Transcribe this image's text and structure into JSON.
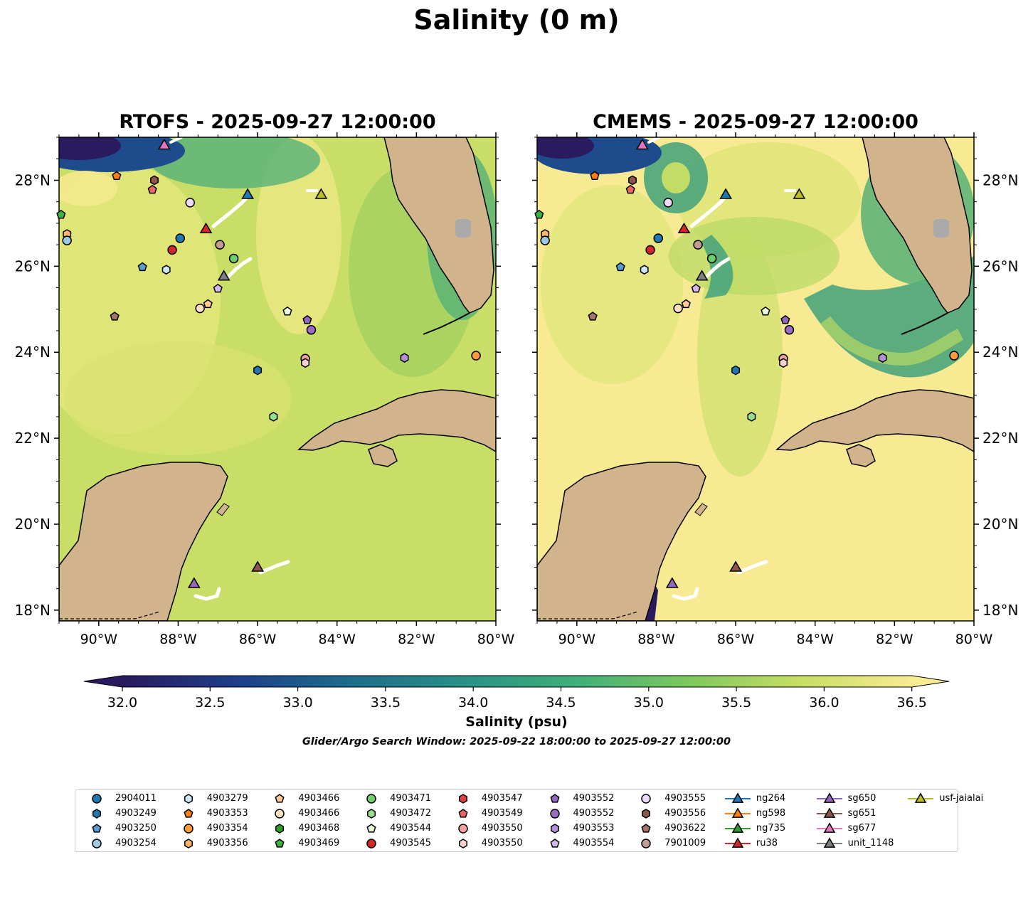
{
  "title": "Salinity (0 m)",
  "panels": [
    {
      "title": "RTOFS - 2025-09-27 12:00:00"
    },
    {
      "title": "CMEMS - 2025-09-27 12:00:00"
    }
  ],
  "axes": {
    "x_ticks": [
      "90°W",
      "88°W",
      "86°W",
      "84°W",
      "82°W",
      "80°W"
    ],
    "y_ticks": [
      "18°N",
      "20°N",
      "22°N",
      "24°N",
      "26°N",
      "28°N"
    ]
  },
  "colorbar": {
    "label": "Salinity (psu)",
    "ticks": [
      "32.0",
      "32.5",
      "33.0",
      "33.5",
      "34.0",
      "34.5",
      "35.0",
      "35.5",
      "36.0",
      "36.5"
    ],
    "colors": [
      "#2a1a5e",
      "#1d3f8a",
      "#1d6b8c",
      "#2a8f86",
      "#3fae7a",
      "#7cc85e",
      "#c6de62",
      "#f9eb92"
    ]
  },
  "search_window": "Glider/Argo Search Window: 2025-09-22 18:00:00 to 2025-09-27 12:00:00",
  "legend": [
    {
      "label": "2904011",
      "marker": "circle",
      "color": "#1f77b4",
      "line": false
    },
    {
      "label": "4903249",
      "marker": "hexagon",
      "color": "#1f77b4",
      "line": false
    },
    {
      "label": "4903250",
      "marker": "pentagon",
      "color": "#5b9bd5",
      "line": false
    },
    {
      "label": "4903254",
      "marker": "circle",
      "color": "#9ecae1",
      "line": false
    },
    {
      "label": "4903279",
      "marker": "hexagon",
      "color": "#cfe8fb",
      "line": false
    },
    {
      "label": "4903353",
      "marker": "pentagon",
      "color": "#ff7f0e",
      "line": false
    },
    {
      "label": "4903354",
      "marker": "circle",
      "color": "#ff9a3c",
      "line": false
    },
    {
      "label": "4903356",
      "marker": "hexagon",
      "color": "#ffb570",
      "line": false
    },
    {
      "label": "4903466",
      "marker": "pentagon",
      "color": "#ffc999",
      "line": false
    },
    {
      "label": "4903466",
      "marker": "circle",
      "color": "#ffe0c2",
      "line": false
    },
    {
      "label": "4903468",
      "marker": "hexagon",
      "color": "#2ca02c",
      "line": false
    },
    {
      "label": "4903469",
      "marker": "pentagon",
      "color": "#3cb43c",
      "line": false
    },
    {
      "label": "4903471",
      "marker": "circle",
      "color": "#6fcf6f",
      "line": false
    },
    {
      "label": "4903472",
      "marker": "hexagon",
      "color": "#98df8a",
      "line": false
    },
    {
      "label": "4903544",
      "marker": "pentagon",
      "color": "#e8fbd6",
      "line": false
    },
    {
      "label": "4903545",
      "marker": "circle",
      "color": "#d62728",
      "line": false
    },
    {
      "label": "4903547",
      "marker": "hexagon",
      "color": "#e04040",
      "line": false
    },
    {
      "label": "4903549",
      "marker": "pentagon",
      "color": "#ee6666",
      "line": false
    },
    {
      "label": "4903550",
      "marker": "circle",
      "color": "#f4a0a0",
      "line": false
    },
    {
      "label": "4903550",
      "marker": "hexagon",
      "color": "#fbd2d2",
      "line": false
    },
    {
      "label": "4903552",
      "marker": "pentagon",
      "color": "#9467bd",
      "line": false
    },
    {
      "label": "4903552",
      "marker": "circle",
      "color": "#9a6cc6",
      "line": false
    },
    {
      "label": "4903553",
      "marker": "hexagon",
      "color": "#b48fdc",
      "line": false
    },
    {
      "label": "4903554",
      "marker": "pentagon",
      "color": "#d4b8f0",
      "line": false
    },
    {
      "label": "4903555",
      "marker": "circle",
      "color": "#eedbff",
      "line": false
    },
    {
      "label": "4903556",
      "marker": "hexagon",
      "color": "#8c564b",
      "line": false
    },
    {
      "label": "4903622",
      "marker": "pentagon",
      "color": "#a77466",
      "line": false
    },
    {
      "label": "7901009",
      "marker": "circle",
      "color": "#c49c94",
      "line": false
    },
    {
      "label": "ng264",
      "marker": "triangle",
      "color": "#1f77b4",
      "line": true
    },
    {
      "label": "ng598",
      "marker": "triangle",
      "color": "#ff7f0e",
      "line": true
    },
    {
      "label": "ng735",
      "marker": "triangle",
      "color": "#2ca02c",
      "line": true
    },
    {
      "label": "ru38",
      "marker": "triangle",
      "color": "#d62728",
      "line": true
    },
    {
      "label": "sg650",
      "marker": "triangle",
      "color": "#9467bd",
      "line": true
    },
    {
      "label": "sg651",
      "marker": "triangle",
      "color": "#8c564b",
      "line": true
    },
    {
      "label": "sg677",
      "marker": "triangle",
      "color": "#e377c2",
      "line": true
    },
    {
      "label": "unit_1148",
      "marker": "triangle",
      "color": "#7f7f7f",
      "line": true
    },
    {
      "label": "usf-jaialai",
      "marker": "triangle",
      "color": "#bcbd22",
      "line": true
    }
  ],
  "observations": [
    {
      "id": "4903469",
      "marker": "pentagon",
      "color": "#3cb43c",
      "lon": -90.95,
      "lat": 27.2
    },
    {
      "id": "4903356",
      "marker": "hexagon",
      "color": "#ffb570",
      "lon": -90.8,
      "lat": 26.75
    },
    {
      "id": "4903254",
      "marker": "circle",
      "color": "#9ecae1",
      "lon": -90.8,
      "lat": 26.6
    },
    {
      "id": "4903353",
      "marker": "pentagon",
      "color": "#ff7f0e",
      "lon": -89.55,
      "lat": 28.1
    },
    {
      "id": "4903556",
      "marker": "hexagon",
      "color": "#8c564b",
      "lon": -88.6,
      "lat": 28.0
    },
    {
      "id": "4903549",
      "marker": "pentagon",
      "color": "#ee6666",
      "lon": -88.65,
      "lat": 27.78
    },
    {
      "id": "sg677",
      "marker": "triangle",
      "color": "#e377c2",
      "lon": -88.35,
      "lat": 28.8
    },
    {
      "id": "4903555",
      "marker": "circle",
      "color": "#eedbff",
      "lon": -87.7,
      "lat": 27.48
    },
    {
      "id": "ng264",
      "marker": "triangle",
      "color": "#1f77b4",
      "lon": -86.25,
      "lat": 27.65
    },
    {
      "id": "usf-jaialai",
      "marker": "triangle",
      "color": "#bcbd22",
      "lon": -84.4,
      "lat": 27.65
    },
    {
      "id": "ru38",
      "marker": "triangle",
      "color": "#d62728",
      "lon": -87.3,
      "lat": 26.85
    },
    {
      "id": "2904011",
      "marker": "circle",
      "color": "#1f77b4",
      "lon": -87.95,
      "lat": 26.65
    },
    {
      "id": "7901009",
      "marker": "circle",
      "color": "#c49c94",
      "lon": -86.95,
      "lat": 26.5
    },
    {
      "id": "4903545",
      "marker": "circle",
      "color": "#d62728",
      "lon": -88.15,
      "lat": 26.38
    },
    {
      "id": "4903471",
      "marker": "circle",
      "color": "#6fcf6f",
      "lon": -86.6,
      "lat": 26.18
    },
    {
      "id": "4903250",
      "marker": "pentagon",
      "color": "#5b9bd5",
      "lon": -88.9,
      "lat": 25.98
    },
    {
      "id": "4903279",
      "marker": "hexagon",
      "color": "#cfe8fb",
      "lon": -88.3,
      "lat": 25.92
    },
    {
      "id": "unit_1148",
      "marker": "triangle",
      "color": "#7f7f7f",
      "lon": -86.85,
      "lat": 25.75
    },
    {
      "id": "4903554",
      "marker": "pentagon",
      "color": "#d4b8f0",
      "lon": -87.0,
      "lat": 25.48
    },
    {
      "id": "4903466",
      "marker": "pentagon",
      "color": "#ffc999",
      "lon": -87.25,
      "lat": 25.12
    },
    {
      "id": "4903466",
      "marker": "circle",
      "color": "#ffe0c2",
      "lon": -87.45,
      "lat": 25.02
    },
    {
      "id": "4903544",
      "marker": "pentagon",
      "color": "#e8fbd6",
      "lon": -85.25,
      "lat": 24.95
    },
    {
      "id": "4903622",
      "marker": "pentagon",
      "color": "#a77466",
      "lon": -89.6,
      "lat": 24.83
    },
    {
      "id": "4903552",
      "marker": "pentagon",
      "color": "#9467bd",
      "lon": -84.75,
      "lat": 24.75
    },
    {
      "id": "4903552",
      "marker": "circle",
      "color": "#9a6cc6",
      "lon": -84.65,
      "lat": 24.52
    },
    {
      "id": "4903550",
      "marker": "circle",
      "color": "#f4a0a0",
      "lon": -84.8,
      "lat": 23.85
    },
    {
      "id": "4903550",
      "marker": "hexagon",
      "color": "#fbd2d2",
      "lon": -84.8,
      "lat": 23.75
    },
    {
      "id": "4903553",
      "marker": "hexagon",
      "color": "#b48fdc",
      "lon": -82.3,
      "lat": 23.87
    },
    {
      "id": "4903354",
      "marker": "circle",
      "color": "#ff9a3c",
      "lon": -80.5,
      "lat": 23.92
    },
    {
      "id": "4903249",
      "marker": "hexagon",
      "color": "#1f77b4",
      "lon": -86.0,
      "lat": 23.58
    },
    {
      "id": "4903472",
      "marker": "hexagon",
      "color": "#98df8a",
      "lon": -85.6,
      "lat": 22.5
    },
    {
      "id": "sg651",
      "marker": "triangle",
      "color": "#8c564b",
      "lon": -86.0,
      "lat": 18.98
    },
    {
      "id": "sg650",
      "marker": "triangle",
      "color": "#9467bd",
      "lon": -87.6,
      "lat": 18.6
    }
  ]
}
